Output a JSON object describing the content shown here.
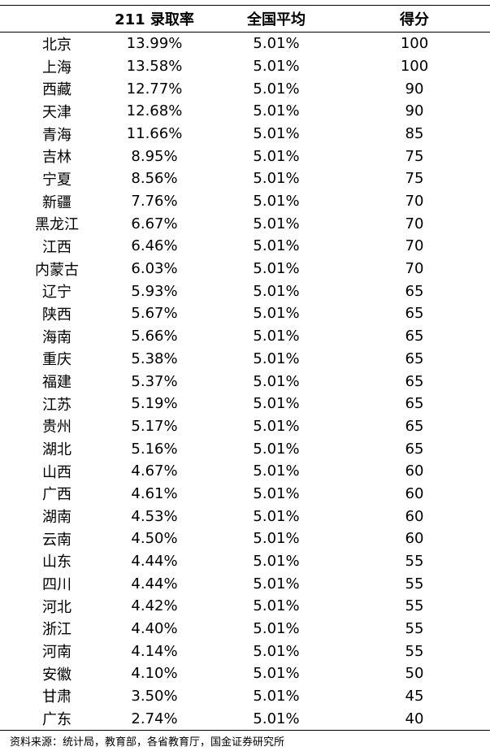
{
  "table": {
    "header": [
      "211 录取率",
      "全国平均",
      "得分"
    ],
    "rows": [
      [
        "北京",
        "13.99%",
        "5.01%",
        "100"
      ],
      [
        "上海",
        "13.58%",
        "5.01%",
        "100"
      ],
      [
        "西藏",
        "12.77%",
        "5.01%",
        "90"
      ],
      [
        "天津",
        "12.68%",
        "5.01%",
        "90"
      ],
      [
        "青海",
        "11.66%",
        "5.01%",
        "85"
      ],
      [
        "吉林",
        "8.95%",
        "5.01%",
        "75"
      ],
      [
        "宁夏",
        "8.56%",
        "5.01%",
        "75"
      ],
      [
        "新疆",
        "7.76%",
        "5.01%",
        "70"
      ],
      [
        "黑龙江",
        "6.67%",
        "5.01%",
        "70"
      ],
      [
        "江西",
        "6.46%",
        "5.01%",
        "70"
      ],
      [
        "内蒙古",
        "6.03%",
        "5.01%",
        "70"
      ],
      [
        "辽宁",
        "5.93%",
        "5.01%",
        "65"
      ],
      [
        "陕西",
        "5.67%",
        "5.01%",
        "65"
      ],
      [
        "海南",
        "5.66%",
        "5.01%",
        "65"
      ],
      [
        "重庆",
        "5.38%",
        "5.01%",
        "65"
      ],
      [
        "福建",
        "5.37%",
        "5.01%",
        "65"
      ],
      [
        "江苏",
        "5.19%",
        "5.01%",
        "65"
      ],
      [
        "贵州",
        "5.17%",
        "5.01%",
        "65"
      ],
      [
        "湖北",
        "5.16%",
        "5.01%",
        "65"
      ],
      [
        "山西",
        "4.67%",
        "5.01%",
        "60"
      ],
      [
        "广西",
        "4.61%",
        "5.01%",
        "60"
      ],
      [
        "湖南",
        "4.53%",
        "5.01%",
        "60"
      ],
      [
        "云南",
        "4.50%",
        "5.01%",
        "60"
      ],
      [
        "山东",
        "4.44%",
        "5.01%",
        "55"
      ],
      [
        "四川",
        "4.44%",
        "5.01%",
        "55"
      ],
      [
        "河北",
        "4.42%",
        "5.01%",
        "55"
      ],
      [
        "浙江",
        "4.40%",
        "5.01%",
        "55"
      ],
      [
        "河南",
        "4.14%",
        "5.01%",
        "55"
      ],
      [
        "安徽",
        "4.10%",
        "5.01%",
        "50"
      ],
      [
        "甘肃",
        "3.50%",
        "5.01%",
        "45"
      ],
      [
        "广东",
        "2.74%",
        "5.01%",
        "40"
      ]
    ]
  },
  "source": "资料来源：统计局，教育部，各省教育厅，国金证券研究所"
}
